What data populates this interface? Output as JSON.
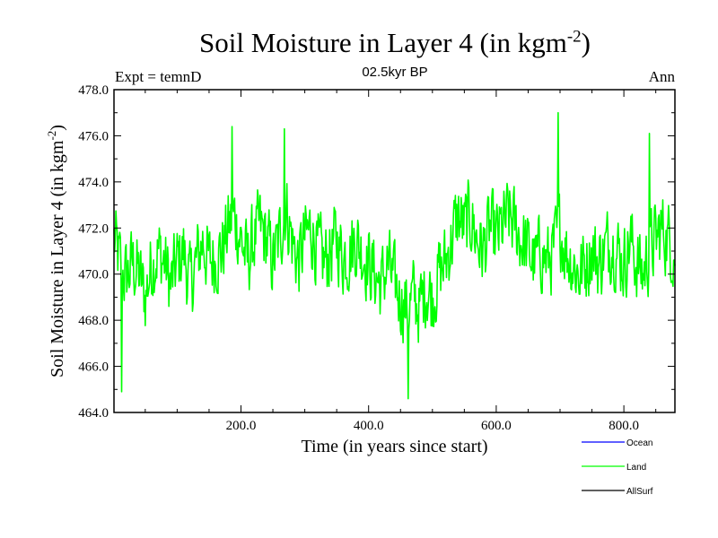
{
  "chart_data": {
    "type": "line",
    "title": "Soil Moisture in Layer 4 (in kgm",
    "title_superscript": "-2",
    "title_close": ")",
    "subtitle": "02.5kyr BP",
    "left_label": "Expt = temnD",
    "right_label": "Ann",
    "xlabel": "Time (in years since start)",
    "ylabel": "Soil Moisture in Layer 4 (in kgm",
    "ylabel_superscript": "-2",
    "ylabel_close": ")",
    "xlim": [
      1,
      880
    ],
    "ylim": [
      464.0,
      478.0
    ],
    "xticks": [
      200,
      400,
      600,
      800
    ],
    "xtick_labels": [
      "200.0",
      "400.0",
      "600.0",
      "800.0"
    ],
    "yticks": [
      464,
      466,
      468,
      470,
      472,
      474,
      476,
      478
    ],
    "ytick_labels": [
      "464.0",
      "466.0",
      "468.0",
      "470.0",
      "472.0",
      "474.0",
      "476.0",
      "478.0"
    ],
    "legend": [
      {
        "name": "Ocean",
        "color": "#0000ff"
      },
      {
        "name": "Land",
        "color": "#00ff00"
      },
      {
        "name": "AllSurf",
        "color": "#000000"
      }
    ],
    "series": [
      {
        "name": "Land",
        "color": "#00ff00",
        "anchors_x": [
          1,
          10,
          20,
          30,
          40,
          50,
          60,
          70,
          80,
          90,
          100,
          110,
          120,
          130,
          140,
          150,
          160,
          170,
          180,
          190,
          200,
          210,
          220,
          230,
          240,
          250,
          260,
          270,
          280,
          290,
          300,
          310,
          320,
          330,
          340,
          350,
          360,
          370,
          380,
          390,
          400,
          410,
          420,
          430,
          440,
          450,
          460,
          470,
          480,
          490,
          500,
          510,
          520,
          530,
          540,
          550,
          560,
          570,
          580,
          590,
          600,
          610,
          620,
          630,
          640,
          650,
          660,
          670,
          680,
          690,
          700,
          710,
          720,
          730,
          740,
          750,
          760,
          770,
          780,
          790,
          800,
          810,
          820,
          830,
          840,
          850,
          860,
          870,
          880
        ],
        "anchors_y": [
          471.5,
          470.5,
          469.8,
          470.5,
          470.0,
          469.0,
          470.5,
          471.0,
          470.5,
          469.5,
          470.5,
          471.0,
          469.5,
          470.5,
          471.5,
          470.5,
          470.8,
          471.0,
          472.0,
          472.5,
          471.5,
          470.5,
          471.5,
          472.0,
          471.5,
          470.5,
          471.5,
          473.0,
          471.5,
          470.5,
          471.5,
          472.0,
          471.0,
          470.5,
          471.0,
          471.5,
          470.8,
          471.0,
          471.5,
          471.0,
          470.5,
          470.0,
          469.5,
          470.5,
          469.5,
          469.0,
          468.5,
          469.0,
          468.5,
          469.5,
          469.0,
          470.0,
          470.5,
          471.5,
          472.5,
          472.0,
          472.5,
          471.5,
          471.0,
          472.0,
          471.5,
          472.0,
          472.5,
          472.0,
          471.5,
          471.0,
          470.5,
          471.0,
          470.5,
          471.0,
          472.0,
          471.0,
          470.5,
          470.0,
          470.5,
          471.0,
          470.5,
          471.0,
          471.5,
          471.0,
          470.5,
          471.5,
          470.5,
          470.0,
          471.0,
          471.5,
          472.0,
          471.5,
          471.0
        ],
        "noise_amplitude": 1.5,
        "sample_count": 880,
        "extremes": [
          [
            697,
            477.0
          ],
          [
            462,
            464.6
          ],
          [
            13,
            464.9
          ],
          [
            268,
            476.3
          ],
          [
            186,
            476.4
          ],
          [
            840,
            476.1
          ]
        ]
      }
    ]
  }
}
